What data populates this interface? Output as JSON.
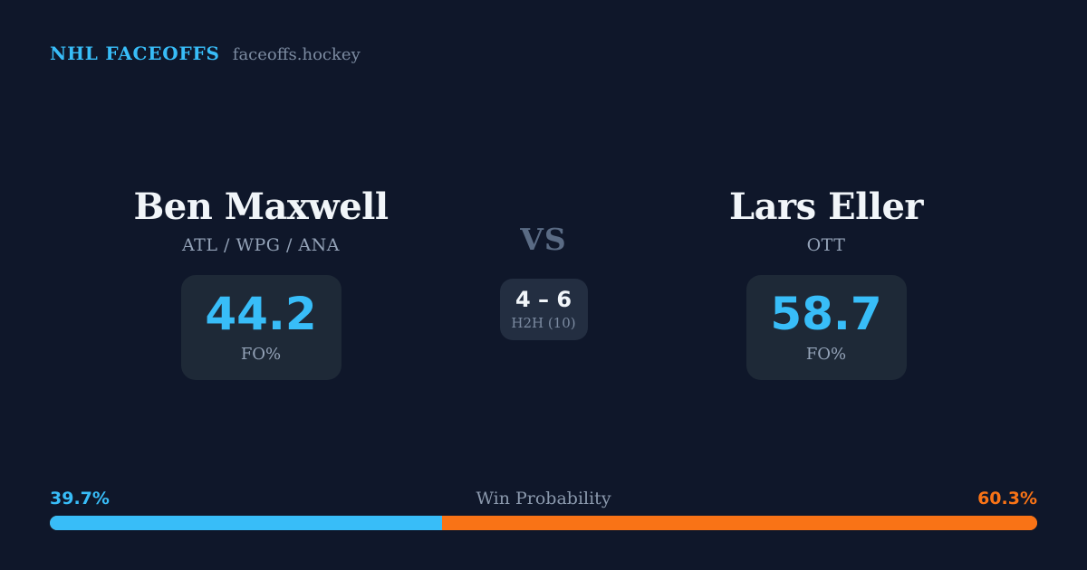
{
  "header": {
    "brand": "NHL FACEOFFS",
    "site": "faceoffs.hockey"
  },
  "players": {
    "left": {
      "name": "Ben Maxwell",
      "teams": "ATL / WPG / ANA",
      "fo_pct": "44.2",
      "fo_label": "FO%",
      "win_prob_label": "39.7%"
    },
    "right": {
      "name": "Lars Eller",
      "teams": "OTT",
      "fo_pct": "58.7",
      "fo_label": "FO%",
      "win_prob_label": "60.3%"
    }
  },
  "matchup": {
    "vs_label": "VS",
    "h2h_score": "4 – 6",
    "h2h_label": "H2H (10)"
  },
  "win_probability": {
    "title": "Win Probability",
    "left_pct": 39.7,
    "right_pct": 60.3
  },
  "colors": {
    "background": "#0f172a",
    "panel": "#1e2937",
    "panel_center": "#232e41",
    "accent_blue": "#38bdf8",
    "accent_orange": "#f97316",
    "text_primary": "#f1f5f9",
    "text_muted": "#94a3b8",
    "text_faint": "#7c8ba1",
    "vs_color": "#5a6b84"
  },
  "chart_data": {
    "type": "bar",
    "title": "Win Probability",
    "layout": "horizontal-stacked",
    "categories": [
      "Ben Maxwell",
      "Lars Eller"
    ],
    "values": [
      39.7,
      60.3
    ],
    "unit": "%",
    "colors": [
      "#38bdf8",
      "#f97316"
    ],
    "related_stats": {
      "faceoff_pct": {
        "Ben Maxwell": 44.2,
        "Lars Eller": 58.7
      },
      "head_to_head": {
        "score": "4 – 6",
        "sample": 10
      }
    }
  }
}
